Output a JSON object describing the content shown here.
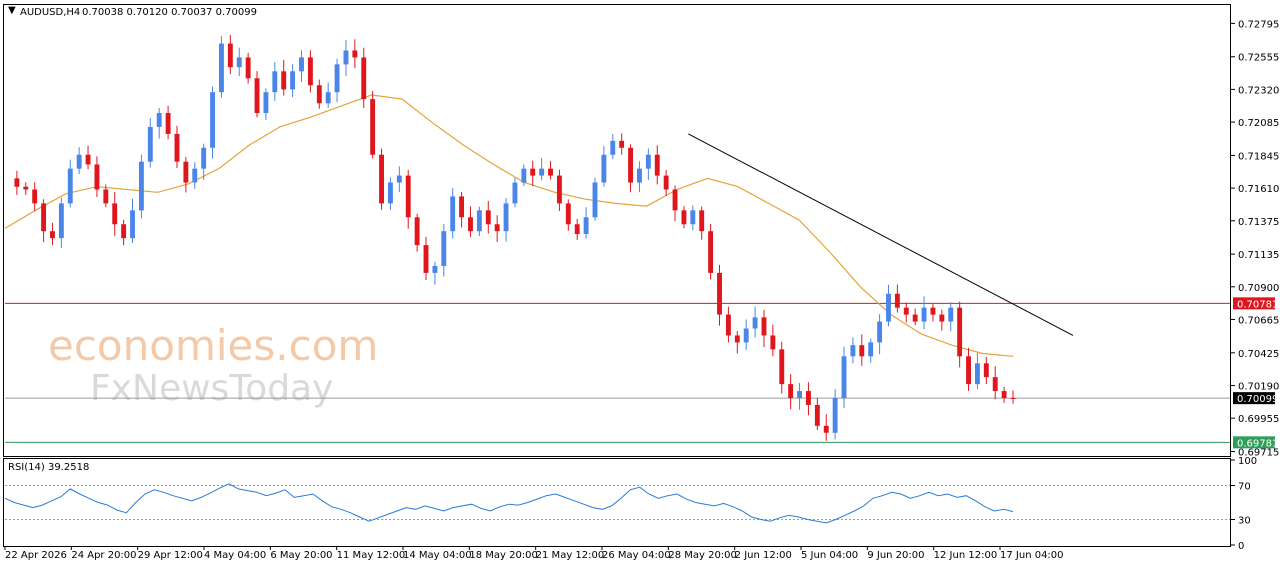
{
  "header": {
    "symbol_label": "AUDUSD,H4",
    "ohlc_label": "0.70038 0.70120 0.70037 0.70099",
    "rsi_label": "RSI(14) 39.2518"
  },
  "watermark": {
    "line1": "economies.com",
    "line2": "FxNewsToday"
  },
  "colors": {
    "bull": "#4a86e8",
    "bear": "#e0161c",
    "ma": "#e6a23c",
    "resistance": "#e0161c",
    "support": "#2e9e5b",
    "trendline": "#000000",
    "rsi": "#2b7bd6",
    "current_price_tag": "#000000"
  },
  "chart_data": [
    {
      "type": "candlestick",
      "symbol": "AUDUSD",
      "timeframe": "H4",
      "y_ticks": [
        "0.72795",
        "0.72555",
        "0.72320",
        "0.72085",
        "0.71845",
        "0.71610",
        "0.71375",
        "0.71135",
        "0.70900",
        "0.70665",
        "0.70425",
        "0.70190",
        "0.69955",
        "0.69715"
      ],
      "ylim": [
        0.6969,
        0.7292
      ],
      "x_ticks": [
        "22 Apr 2026",
        "24 Apr 20:00",
        "29 Apr 12:00",
        "4 May 04:00",
        "6 May 20:00",
        "11 May 12:00",
        "14 May 04:00",
        "18 May 20:00",
        "21 May 12:00",
        "26 May 04:00",
        "28 May 20:00",
        "2 Jun 12:00",
        "5 Jun 04:00",
        "9 Jun 20:00",
        "12 Jun 12:00",
        "17 Jun 04:00"
      ],
      "close_path": [
        0.7168,
        0.7162,
        0.716,
        0.715,
        0.713,
        0.7125,
        0.715,
        0.7175,
        0.7185,
        0.7178,
        0.716,
        0.715,
        0.7135,
        0.7125,
        0.7145,
        0.718,
        0.7205,
        0.7215,
        0.72,
        0.718,
        0.7165,
        0.7175,
        0.719,
        0.723,
        0.7265,
        0.7248,
        0.7255,
        0.724,
        0.7215,
        0.723,
        0.7245,
        0.7232,
        0.7245,
        0.7255,
        0.7235,
        0.7222,
        0.723,
        0.725,
        0.726,
        0.7255,
        0.7225,
        0.7185,
        0.715,
        0.7165,
        0.717,
        0.714,
        0.712,
        0.71,
        0.7105,
        0.713,
        0.7155,
        0.714,
        0.713,
        0.7145,
        0.7135,
        0.713,
        0.715,
        0.7165,
        0.7175,
        0.717,
        0.7175,
        0.717,
        0.715,
        0.7135,
        0.7128,
        0.714,
        0.7165,
        0.7185,
        0.7195,
        0.719,
        0.7165,
        0.7175,
        0.7185,
        0.717,
        0.716,
        0.7145,
        0.7135,
        0.7145,
        0.713,
        0.71,
        0.707,
        0.7055,
        0.705,
        0.706,
        0.7068,
        0.7055,
        0.7045,
        0.702,
        0.701,
        0.7015,
        0.7005,
        0.699,
        0.6985,
        0.701,
        0.704,
        0.7048,
        0.704,
        0.705,
        0.7065,
        0.7085,
        0.7075,
        0.707,
        0.7065,
        0.7075,
        0.707,
        0.7065,
        0.7075,
        0.704,
        0.702,
        0.7035,
        0.7025,
        0.7015,
        0.701,
        0.70099
      ],
      "moving_average_path": [
        0.7132,
        0.7145,
        0.7157,
        0.7162,
        0.716,
        0.7158,
        0.7164,
        0.7175,
        0.7192,
        0.7205,
        0.7212,
        0.722,
        0.7228,
        0.7225,
        0.7208,
        0.7192,
        0.7178,
        0.7165,
        0.7158,
        0.7153,
        0.715,
        0.7148,
        0.716,
        0.7168,
        0.7162,
        0.715,
        0.7138,
        0.7115,
        0.709,
        0.707,
        0.7056,
        0.7048,
        0.7042,
        0.704
      ],
      "levels": [
        {
          "label": "0.70781",
          "value": 0.70781,
          "kind": "resistance"
        },
        {
          "label": "0.70099",
          "value": 0.70099,
          "kind": "current"
        },
        {
          "label": "0.69781",
          "value": 0.69781,
          "kind": "support"
        }
      ],
      "trendline": {
        "from": {
          "x": "28 May 20:00",
          "y": 0.72
        },
        "to": {
          "x": "17 Jun 04:00",
          "y": 0.7078
        },
        "extends_to": 0.7038
      },
      "grid": false
    },
    {
      "type": "line",
      "name": "RSI(14)",
      "current": 39.2518,
      "ylim": [
        0,
        100
      ],
      "y_ticks": [
        "100",
        "70",
        "30",
        "0"
      ],
      "levels": [
        70,
        30
      ],
      "path": [
        55,
        50,
        47,
        44,
        47,
        52,
        57,
        66,
        60,
        55,
        50,
        47,
        41,
        38,
        50,
        60,
        65,
        62,
        58,
        55,
        52,
        56,
        61,
        67,
        72,
        66,
        64,
        62,
        58,
        61,
        65,
        56,
        58,
        60,
        52,
        45,
        42,
        38,
        33,
        28,
        32,
        36,
        40,
        44,
        42,
        46,
        43,
        40,
        44,
        46,
        48,
        43,
        40,
        45,
        48,
        47,
        50,
        54,
        58,
        60,
        56,
        52,
        48,
        44,
        42,
        46,
        55,
        65,
        68,
        60,
        55,
        58,
        60,
        54,
        50,
        48,
        46,
        49,
        45,
        40,
        33,
        30,
        28,
        32,
        35,
        33,
        30,
        28,
        26,
        30,
        35,
        40,
        46,
        55,
        58,
        62,
        60,
        55,
        58,
        62,
        58,
        60,
        56,
        58,
        52,
        45,
        40,
        42,
        39.25
      ]
    }
  ]
}
